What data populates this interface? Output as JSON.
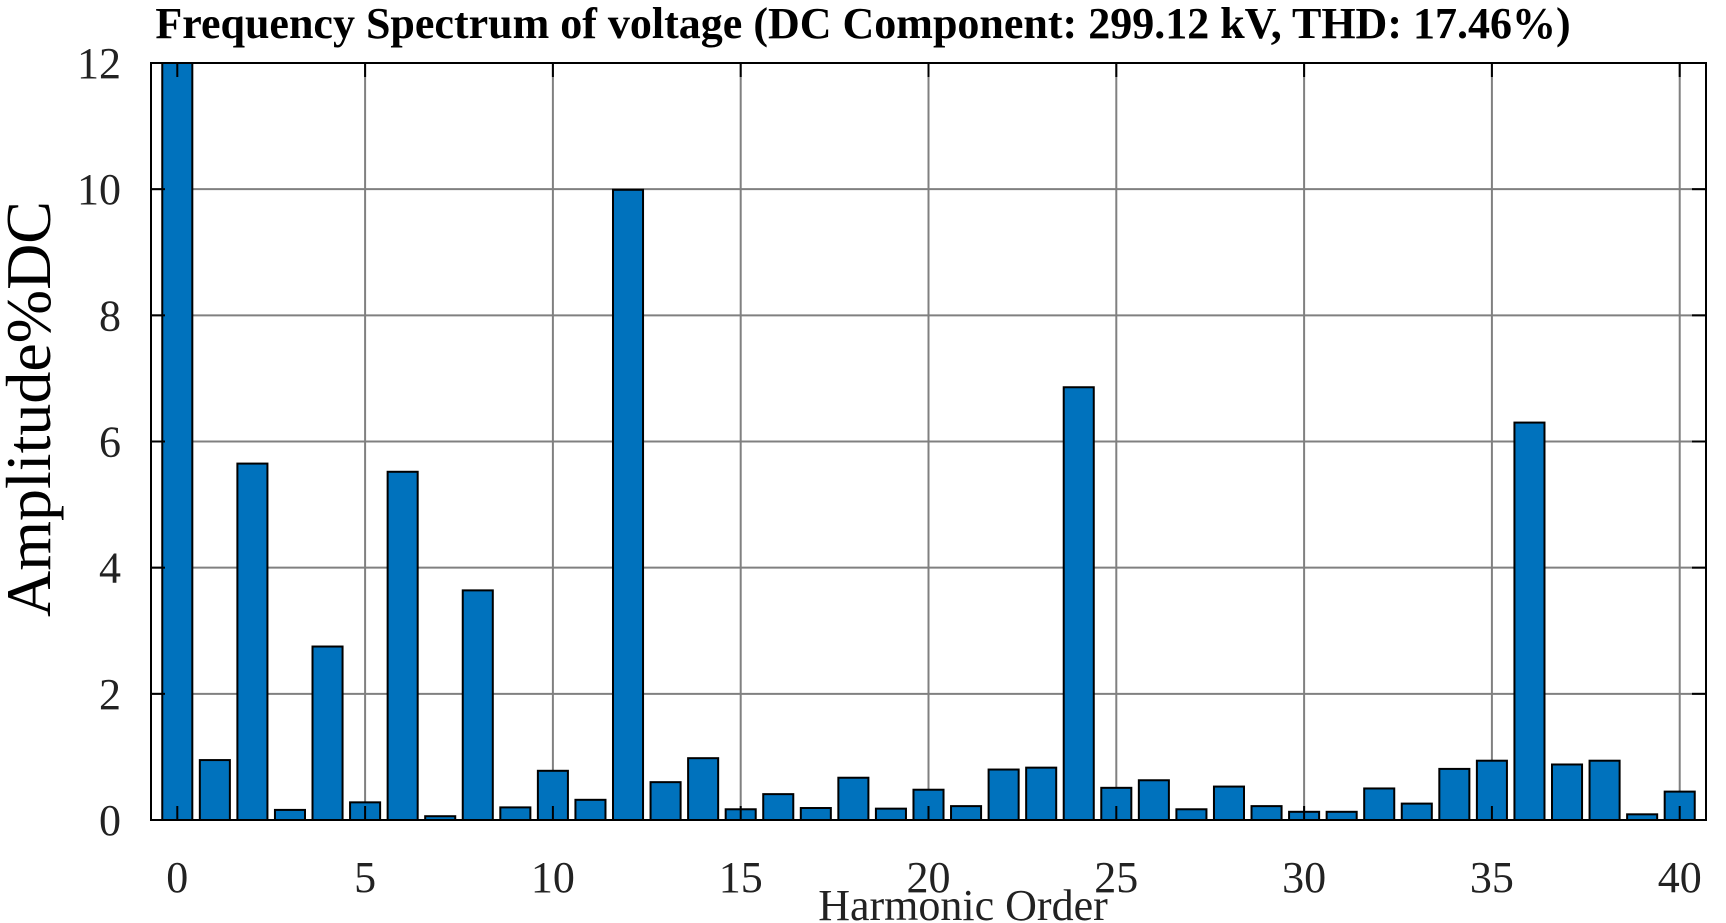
{
  "chart_data": {
    "type": "bar",
    "title": "Frequency Spectrum of voltage (DC Component: 299.12 kV, THD: 17.46%)",
    "xlabel": "Harmonic Order",
    "ylabel": "Amplitude%DC",
    "x": [
      0,
      1,
      2,
      3,
      4,
      5,
      6,
      7,
      8,
      9,
      10,
      11,
      12,
      13,
      14,
      15,
      16,
      17,
      18,
      19,
      20,
      21,
      22,
      23,
      24,
      25,
      26,
      27,
      28,
      29,
      30,
      31,
      32,
      33,
      34,
      35,
      36,
      37,
      38,
      39,
      40
    ],
    "values": [
      12.0,
      0.95,
      5.65,
      0.16,
      2.75,
      0.28,
      5.52,
      0.06,
      3.64,
      0.2,
      0.78,
      0.32,
      9.99,
      0.6,
      0.98,
      0.17,
      0.41,
      0.19,
      0.67,
      0.18,
      0.48,
      0.22,
      0.8,
      0.83,
      6.86,
      0.51,
      0.63,
      0.17,
      0.53,
      0.22,
      0.13,
      0.13,
      0.5,
      0.26,
      0.81,
      0.94,
      6.3,
      0.88,
      0.94,
      0.09,
      0.45
    ],
    "xlim": [
      -0.7,
      40.7
    ],
    "ylim": [
      0,
      12
    ],
    "xticks": [
      0,
      5,
      10,
      15,
      20,
      25,
      30,
      35,
      40
    ],
    "yticks": [
      0,
      2,
      4,
      6,
      8,
      10,
      12
    ],
    "grid": true,
    "bar_color": "#0072BD",
    "bar_edge_color": "#000000",
    "grid_color": "#808080"
  }
}
